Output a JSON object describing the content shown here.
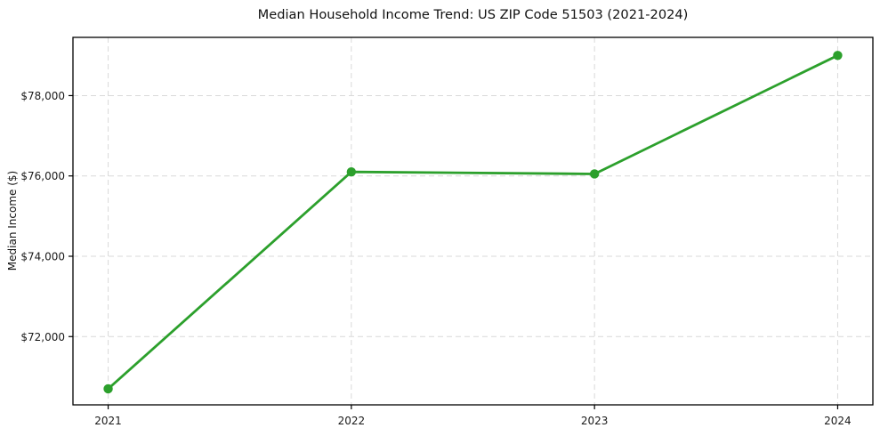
{
  "figure": {
    "background": "#ffffff"
  },
  "chart_data": {
    "type": "line",
    "title": "Median Household Income Trend: US ZIP Code 51503 (2021-2024)",
    "xlabel": "",
    "ylabel": "Median Income ($)",
    "categories": [
      "2021",
      "2022",
      "2023",
      "2024"
    ],
    "series": [
      {
        "name": "Median Household Income",
        "values": [
          70700,
          76100,
          76050,
          79000
        ],
        "color": "#2ca02c",
        "marker": "circle"
      }
    ],
    "ylim": [
      70300,
      79450
    ],
    "yticks": [
      72000,
      74000,
      76000,
      78000
    ],
    "ytick_labels": [
      "$72,000",
      "$74,000",
      "$76,000",
      "$78,000"
    ],
    "grid": "on",
    "grid_style": "dashed",
    "grid_color": "#d9d9d9",
    "axes_color": "#000000",
    "tick_label_color": "#1a1a1a",
    "legend": "none"
  }
}
